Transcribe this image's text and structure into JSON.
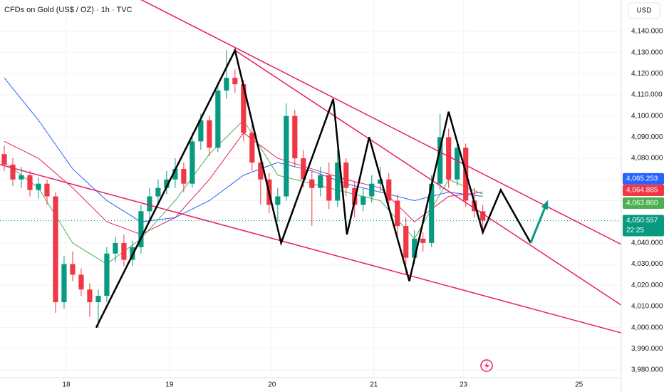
{
  "chart_data": {
    "type": "candlestick",
    "title": "CFDs on Gold (US$ / OZ) · 1h · TVC",
    "currency": "USD",
    "up_color": "#089981",
    "down_color": "#f23645",
    "ohlc": [
      [
        4082,
        4086,
        4074,
        4077
      ],
      [
        4077,
        4080,
        4067,
        4070
      ],
      [
        4070,
        4076,
        4066,
        4072
      ],
      [
        4072,
        4074,
        4062,
        4065
      ],
      [
        4065,
        4071,
        4061,
        4068
      ],
      [
        4068,
        4070,
        4058,
        4062
      ],
      [
        4062,
        4064,
        4007,
        4012
      ],
      [
        4012,
        4034,
        4009,
        4030
      ],
      [
        4030,
        4036,
        4022,
        4025
      ],
      [
        4025,
        4028,
        4015,
        4018
      ],
      [
        4018,
        4021,
        4005,
        4012
      ],
      [
        4012,
        4018,
        4000,
        4015
      ],
      [
        4015,
        4038,
        4012,
        4035
      ],
      [
        4035,
        4043,
        4031,
        4040
      ],
      [
        4040,
        4044,
        4029,
        4032
      ],
      [
        4032,
        4041,
        4029,
        4038
      ],
      [
        4038,
        4058,
        4035,
        4055
      ],
      [
        4055,
        4066,
        4051,
        4062
      ],
      [
        4062,
        4070,
        4058,
        4066
      ],
      [
        4066,
        4074,
        4063,
        4070
      ],
      [
        4070,
        4080,
        4066,
        4075
      ],
      [
        4075,
        4078,
        4064,
        4068
      ],
      [
        4068,
        4092,
        4066,
        4088
      ],
      [
        4088,
        4101,
        4084,
        4098
      ],
      [
        4098,
        4100,
        4081,
        4085
      ],
      [
        4085,
        4116,
        4083,
        4112
      ],
      [
        4112,
        4131,
        4108,
        4118
      ],
      [
        4118,
        4122,
        4111,
        4115
      ],
      [
        4115,
        4117,
        4088,
        4092
      ],
      [
        4092,
        4096,
        4074,
        4078
      ],
      [
        4078,
        4082,
        4058,
        4070
      ],
      [
        4070,
        4073,
        4054,
        4058
      ],
      [
        4058,
        4066,
        4050,
        4062
      ],
      [
        4062,
        4106,
        4060,
        4100
      ],
      [
        4100,
        4103,
        4076,
        4080
      ],
      [
        4080,
        4084,
        4066,
        4070
      ],
      [
        4070,
        4074,
        4048,
        4066
      ],
      [
        4066,
        4076,
        4062,
        4072
      ],
      [
        4072,
        4078,
        4056,
        4060
      ],
      [
        4060,
        4084,
        4057,
        4078
      ],
      [
        4078,
        4080,
        4062,
        4066
      ],
      [
        4066,
        4069,
        4052,
        4058
      ],
      [
        4058,
        4066,
        4055,
        4062
      ],
      [
        4062,
        4072,
        4059,
        4068
      ],
      [
        4068,
        4076,
        4064,
        4070
      ],
      [
        4070,
        4073,
        4056,
        4060
      ],
      [
        4060,
        4063,
        4044,
        4048
      ],
      [
        4048,
        4052,
        4025,
        4033
      ],
      [
        4033,
        4046,
        4030,
        4042
      ],
      [
        4042,
        4045,
        4036,
        4040
      ],
      [
        4040,
        4072,
        4038,
        4068
      ],
      [
        4068,
        4101,
        4065,
        4090
      ],
      [
        4090,
        4094,
        4066,
        4070
      ],
      [
        4070,
        4088,
        4067,
        4085
      ],
      [
        4085,
        4087,
        4057,
        4060
      ],
      [
        4060,
        4066,
        4052,
        4055
      ],
      [
        4055,
        4058,
        4044,
        4050.557
      ]
    ],
    "series": [
      {
        "color": "#2962ff",
        "x": [
          0,
          4,
          8,
          12,
          16,
          20,
          24,
          28,
          32,
          36,
          40,
          44,
          48,
          52,
          56
        ],
        "values": [
          4118,
          4098,
          4075,
          4060,
          4050,
          4052,
          4060,
          4072,
          4078,
          4074,
          4068,
          4064,
          4060,
          4064,
          4062
        ]
      },
      {
        "color": "#e91e63",
        "x": [
          0,
          4,
          8,
          12,
          16,
          20,
          24,
          28,
          32,
          36,
          40,
          44,
          48,
          52,
          56
        ],
        "values": [
          4088,
          4080,
          4066,
          4050,
          4044,
          4052,
          4070,
          4092,
          4080,
          4075,
          4070,
          4066,
          4050,
          4062,
          4064
        ]
      },
      {
        "color": "#4caf50",
        "x": [
          0,
          4,
          8,
          12,
          16,
          20,
          24,
          28,
          32,
          36,
          40,
          44,
          48,
          52,
          56
        ],
        "values": [
          4078,
          4066,
          4040,
          4030,
          4042,
          4060,
          4082,
          4098,
          4072,
          4068,
          4064,
          4060,
          4042,
          4070,
          4063
        ]
      }
    ],
    "trend_lines": [
      {
        "color": "#e91e63",
        "x": [
          16,
          77.2
        ],
        "values": [
          4155,
          4029
        ]
      },
      {
        "color": "#e91e63",
        "x": [
          27,
          72.8
        ],
        "values": [
          4131,
          4009
        ]
      },
      {
        "color": "#e91e63",
        "x": [
          -0.5,
          77.2
        ],
        "values": [
          4077,
          3992
        ]
      }
    ],
    "zigzag": {
      "color": "#000000",
      "x": [
        10.75,
        27,
        32.4,
        38.5,
        40.1,
        42.7,
        47.4,
        52,
        56,
        58.1,
        61.6
      ],
      "values": [
        4000,
        4131,
        4040,
        4108,
        4044,
        4090,
        4022,
        4102,
        4045,
        4065,
        4040
      ]
    },
    "arrow": {
      "color": "#089981",
      "x": [
        61.6,
        63.5
      ],
      "values": [
        4040,
        4059
      ]
    },
    "price_tags": [
      {
        "value": 4065.253,
        "label": "4,065.253",
        "color": "#2962ff"
      },
      {
        "value": 4064.885,
        "label": "4,064.885",
        "color": "#f23645"
      },
      {
        "value": 4063.86,
        "label": "4,063.860",
        "color": "#4caf50"
      },
      {
        "value": 4050.557,
        "label": "4,050.557",
        "color": "#089981",
        "time": "22:25"
      }
    ],
    "xlim": [
      -0.5,
      72.2
    ],
    "ylim": [
      3976.3,
      4154.8
    ],
    "xticks": [
      {
        "value": 7.25,
        "label": "18"
      },
      {
        "value": 19.33,
        "label": "19"
      },
      {
        "value": 31.33,
        "label": "20"
      },
      {
        "value": 43.25,
        "label": "21"
      },
      {
        "value": 53.75,
        "label": "23"
      },
      {
        "value": 67.25,
        "label": "25"
      }
    ],
    "yticks": [
      {
        "value": 3980,
        "label": "3,980.000"
      },
      {
        "value": 3990,
        "label": "3,990.000"
      },
      {
        "value": 4000,
        "label": "4,000.000"
      },
      {
        "value": 4010,
        "label": "4,010.000"
      },
      {
        "value": 4020,
        "label": "4,020.000"
      },
      {
        "value": 4030,
        "label": "4,030.000"
      },
      {
        "value": 4040,
        "label": "4,040.000"
      },
      {
        "value": 4050,
        "label": "4,050.000"
      },
      {
        "value": 4060,
        "label": "4,060.000"
      },
      {
        "value": 4070,
        "label": "4,070.000"
      },
      {
        "value": 4080,
        "label": "4,080.000"
      },
      {
        "value": 4090,
        "label": "4,090.000"
      },
      {
        "value": 4100,
        "label": "4,100.000"
      },
      {
        "value": 4110,
        "label": "4,110.000"
      },
      {
        "value": 4120,
        "label": "4,120.000"
      },
      {
        "value": 4130,
        "label": "4,130.000"
      },
      {
        "value": 4140,
        "label": "4,140.000"
      }
    ]
  }
}
